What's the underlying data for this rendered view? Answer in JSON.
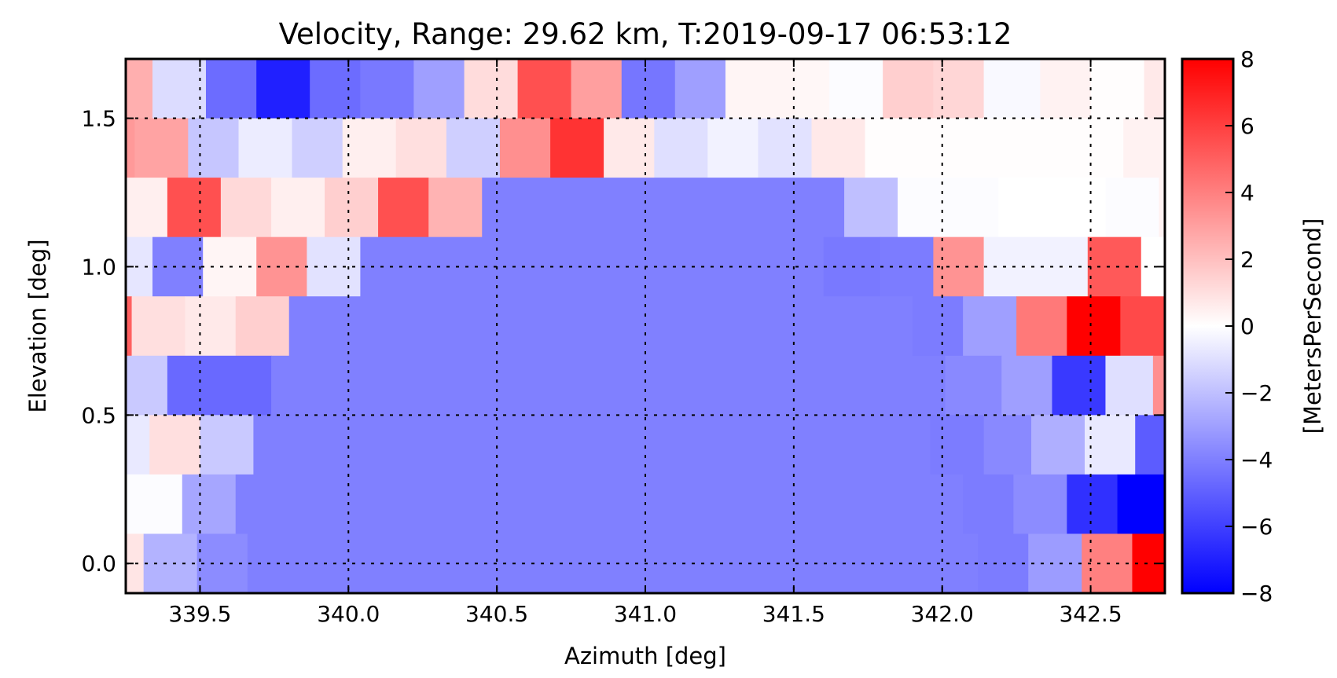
{
  "chart_data": {
    "type": "heatmap",
    "title": "Velocity, Range: 29.62 km, T:2019-09-17 06:53:12",
    "xlabel": "Azimuth [deg]",
    "ylabel": "Elevation [deg]",
    "colorbar_label": "[MetersPerSecond]",
    "colormap": "bwr",
    "colormap_colors": {
      "min": "#0000ff",
      "mid": "#ffffff",
      "max": "#ff0000"
    },
    "xlim": [
      339.25,
      342.75
    ],
    "ylim": [
      -0.1,
      1.7
    ],
    "clim": [
      -8,
      8
    ],
    "grid": true,
    "xticks": [
      339.5,
      340.0,
      340.5,
      341.0,
      341.5,
      342.0,
      342.5
    ],
    "xtick_labels": [
      "339.5",
      "340.0",
      "340.5",
      "341.0",
      "341.5",
      "342.0",
      "342.5"
    ],
    "yticks": [
      0.0,
      0.5,
      1.0,
      1.5
    ],
    "ytick_labels": [
      "0.0",
      "0.5",
      "1.0",
      "1.5"
    ],
    "cbar_ticks": [
      8,
      6,
      4,
      2,
      0,
      -2,
      -4,
      -6,
      -8
    ],
    "cbar_tick_labels": [
      "8",
      "6",
      "4",
      "2",
      "0",
      "−2",
      "−4",
      "−6",
      "−8"
    ],
    "row_half_height": 0.1,
    "rows": [
      {
        "elevation": 1.6,
        "azimuth_edges": [
          339.25,
          339.34,
          339.52,
          339.69,
          339.87,
          340.04,
          340.22,
          340.39,
          340.57,
          340.75,
          340.92,
          341.1,
          341.27,
          341.51,
          341.62,
          341.8,
          341.97,
          342.14,
          342.33,
          342.5,
          342.68,
          342.75
        ],
        "values": [
          2.5,
          -1.1,
          -4.6,
          -7.0,
          -4.6,
          -4.2,
          -3.0,
          1.1,
          5.5,
          3.0,
          -4.3,
          -3.0,
          0.3,
          0.25,
          -0.1,
          1.5,
          1.3,
          -0.2,
          0.4,
          0.05,
          0.7
        ]
      },
      {
        "elevation": 1.4,
        "azimuth_edges": [
          339.25,
          339.28,
          339.46,
          339.63,
          339.81,
          339.98,
          340.16,
          340.33,
          340.51,
          340.68,
          340.86,
          341.03,
          341.21,
          341.38,
          341.56,
          341.74,
          342.61,
          342.75
        ],
        "values": [
          3.2,
          2.9,
          -1.8,
          -0.6,
          -1.5,
          0.5,
          1.0,
          -1.5,
          3.5,
          6.4,
          0.7,
          -1.0,
          -0.4,
          -0.9,
          0.7,
          0.05,
          0.4
        ]
      },
      {
        "elevation": 1.2,
        "azimuth_edges": [
          339.25,
          339.39,
          339.57,
          339.74,
          339.92,
          340.1,
          340.27,
          340.45,
          341.67,
          341.85,
          342.19,
          342.55,
          342.73,
          342.75
        ],
        "values": [
          0.5,
          5.5,
          1.2,
          0.5,
          1.5,
          5.5,
          2.4,
          -4.0,
          -2.0,
          -0.1,
          0.0,
          -0.1,
          0.4
        ]
      },
      {
        "elevation": 1.0,
        "azimuth_edges": [
          339.25,
          339.34,
          339.51,
          339.69,
          339.86,
          340.04,
          341.6,
          341.79,
          341.97,
          342.14,
          342.49,
          342.67,
          342.75
        ],
        "values": [
          -0.8,
          -4.0,
          0.3,
          3.4,
          -0.9,
          -4.0,
          -4.2,
          -4.1,
          3.4,
          -0.4,
          5.2,
          0.0
        ]
      },
      {
        "elevation": 0.8,
        "azimuth_edges": [
          339.25,
          339.27,
          339.45,
          339.62,
          339.8,
          341.9,
          342.07,
          342.25,
          342.42,
          342.6,
          342.75
        ],
        "values": [
          5.0,
          1.0,
          0.7,
          1.5,
          -4.0,
          -4.1,
          -3.0,
          4.2,
          8.0,
          5.7
        ]
      },
      {
        "elevation": 0.6,
        "azimuth_edges": [
          339.25,
          339.39,
          339.74,
          342.01,
          342.2,
          342.37,
          342.55,
          342.71,
          342.75
        ],
        "values": [
          -1.7,
          -4.7,
          -4.0,
          -3.7,
          -3.0,
          -6.2,
          -1.0,
          3.5
        ]
      },
      {
        "elevation": 0.4,
        "azimuth_edges": [
          339.25,
          339.33,
          339.5,
          339.68,
          341.96,
          342.14,
          342.3,
          342.48,
          342.65,
          342.75
        ],
        "values": [
          -0.7,
          1.0,
          -1.7,
          -4.0,
          -4.1,
          -3.7,
          -2.5,
          -0.7,
          -5.1
        ]
      },
      {
        "elevation": 0.2,
        "azimuth_edges": [
          339.25,
          339.44,
          339.62,
          342.07,
          342.24,
          342.42,
          342.59,
          342.75
        ],
        "values": [
          -0.1,
          -2.8,
          -4.0,
          -4.1,
          -3.6,
          -6.5,
          -8.0
        ]
      },
      {
        "elevation": 0.0,
        "azimuth_edges": [
          339.25,
          339.31,
          339.49,
          339.66,
          342.12,
          342.29,
          342.47,
          342.64,
          342.75
        ],
        "values": [
          0.8,
          -2.4,
          -3.6,
          -4.0,
          -4.1,
          -3.1,
          4.0,
          8.0
        ]
      }
    ]
  }
}
